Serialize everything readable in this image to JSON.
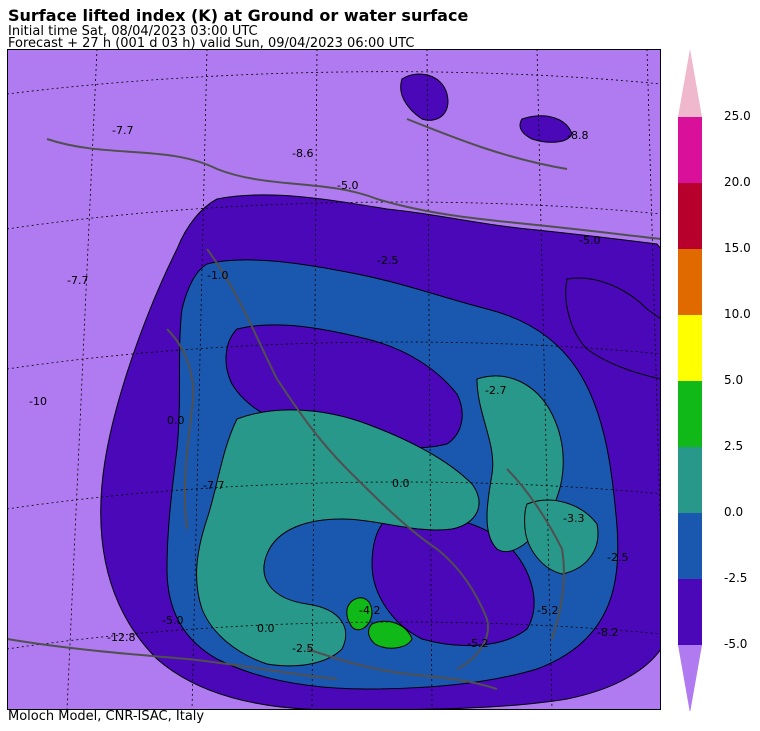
{
  "header": {
    "title": "Surface lifted index (K) at Ground or water surface",
    "initial_time": "Initial time  Sat, 08/04/2023  03:00 UTC",
    "forecast": "Forecast  +  27 h  (001 d 03 h)  valid Sun, 09/04/2023 06:00 UTC"
  },
  "footer": "Moloch Model, CNR-ISAC, Italy",
  "colorbar": {
    "ticks": [
      "25.0",
      "20.0",
      "15.0",
      "10.0",
      "5.0",
      "2.5",
      "0.0",
      "-2.5",
      "-5.0"
    ],
    "colors": [
      "#f0b8cc",
      "#d8109a",
      "#b8002c",
      "#e06a00",
      "#ffff00",
      "#10b818",
      "#28988a",
      "#1a58b0",
      "#4a08b8",
      "#b07af0"
    ]
  },
  "map_labels": [
    "-7.7",
    "-8.8",
    "-8.6",
    "-5.0",
    "-1.0",
    "-2.5",
    "-7.7",
    "-5.0",
    "-10",
    "-2.7",
    "0.0",
    "-7.7",
    "0.0",
    "-3.3",
    "-2.5",
    "-5.2",
    "-12.8",
    "-5.0",
    "-2.5",
    "0.0",
    "-4.2",
    "-8.2",
    "-5.2"
  ],
  "contour_color": "#000000",
  "border_color": "#505050"
}
